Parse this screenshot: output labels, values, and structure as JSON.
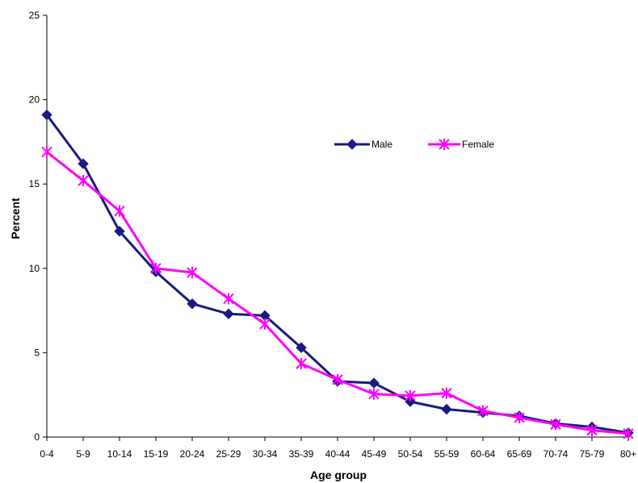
{
  "chart_data": {
    "type": "line",
    "xlabel": "Age group",
    "ylabel": "Percent",
    "ylim": [
      0,
      25
    ],
    "yticks": [
      "0",
      "5",
      "10",
      "15",
      "20",
      "25"
    ],
    "categories": [
      "0-4",
      "5-9",
      "10-14",
      "15-19",
      "20-24",
      "25-29",
      "30-34",
      "35-39",
      "40-44",
      "45-49",
      "50-54",
      "55-59",
      "60-64",
      "65-69",
      "70-74",
      "75-79",
      "80+"
    ],
    "series": [
      {
        "name": "Male",
        "color": "#1a1a80",
        "marker": "diamond",
        "values": [
          19.1,
          16.2,
          12.2,
          9.8,
          7.9,
          7.3,
          7.2,
          5.3,
          3.3,
          3.2,
          2.1,
          1.65,
          1.45,
          1.25,
          0.8,
          0.6,
          0.25
        ]
      },
      {
        "name": "Female",
        "color": "#ff00ff",
        "marker": "asterisk",
        "values": [
          16.9,
          15.2,
          13.4,
          10.0,
          9.75,
          8.2,
          6.7,
          4.35,
          3.4,
          2.55,
          2.45,
          2.6,
          1.55,
          1.15,
          0.75,
          0.4,
          0.2
        ]
      }
    ],
    "legend": "inside-top-center",
    "grid": false
  }
}
